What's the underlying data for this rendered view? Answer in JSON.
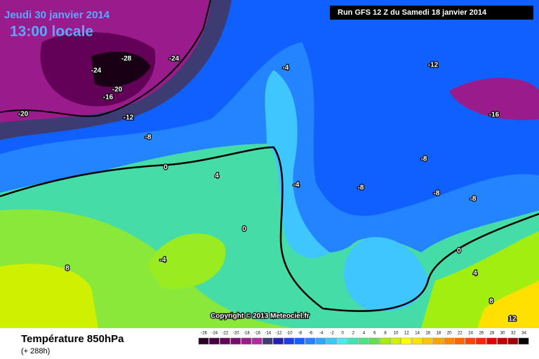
{
  "header": {
    "date": "Jeudi 30 janvier 2014",
    "time": "13:00 locale",
    "run": "Run GFS 12 Z du Samedi 18 janvier 2014"
  },
  "map": {
    "copyright": "Copyright © 2013 Meteociel.fr",
    "contour_labels": [
      "-28",
      "-24",
      "-24",
      "-20",
      "-16",
      "-20",
      "-12",
      "-8",
      "-4",
      "-12",
      "-16",
      "0",
      "4",
      "-4",
      "-8",
      "-8",
      "-8",
      "-8",
      "0",
      "4",
      "8",
      "0",
      "-4",
      "8",
      "12"
    ]
  },
  "footer": {
    "title": "Température 850hPa",
    "subtitle": "(+ 288h)"
  },
  "legend": {
    "labels": [
      -26,
      -24,
      -22,
      -20,
      -18,
      -16,
      -14,
      -12,
      -10,
      -8,
      -6,
      -4,
      -2,
      0,
      2,
      4,
      6,
      8,
      10,
      12,
      14,
      16,
      18,
      20,
      22,
      24,
      26,
      28,
      30,
      32,
      34
    ],
    "colors": [
      "#2a0026",
      "#47003f",
      "#630058",
      "#7e0a70",
      "#9a1c8c",
      "#b02aa6",
      "#3c3c72",
      "#2222a8",
      "#1c3ee0",
      "#1060ff",
      "#2484ff",
      "#32a6ff",
      "#40c6ff",
      "#52e6f2",
      "#44e0b4",
      "#52e080",
      "#62e04e",
      "#a2ee10",
      "#cff000",
      "#ffff00",
      "#ffe000",
      "#ffc400",
      "#ffa400",
      "#ff8400",
      "#ff6400",
      "#ff4400",
      "#ff2400",
      "#e00000",
      "#c00000",
      "#a00000",
      "#000000"
    ]
  }
}
